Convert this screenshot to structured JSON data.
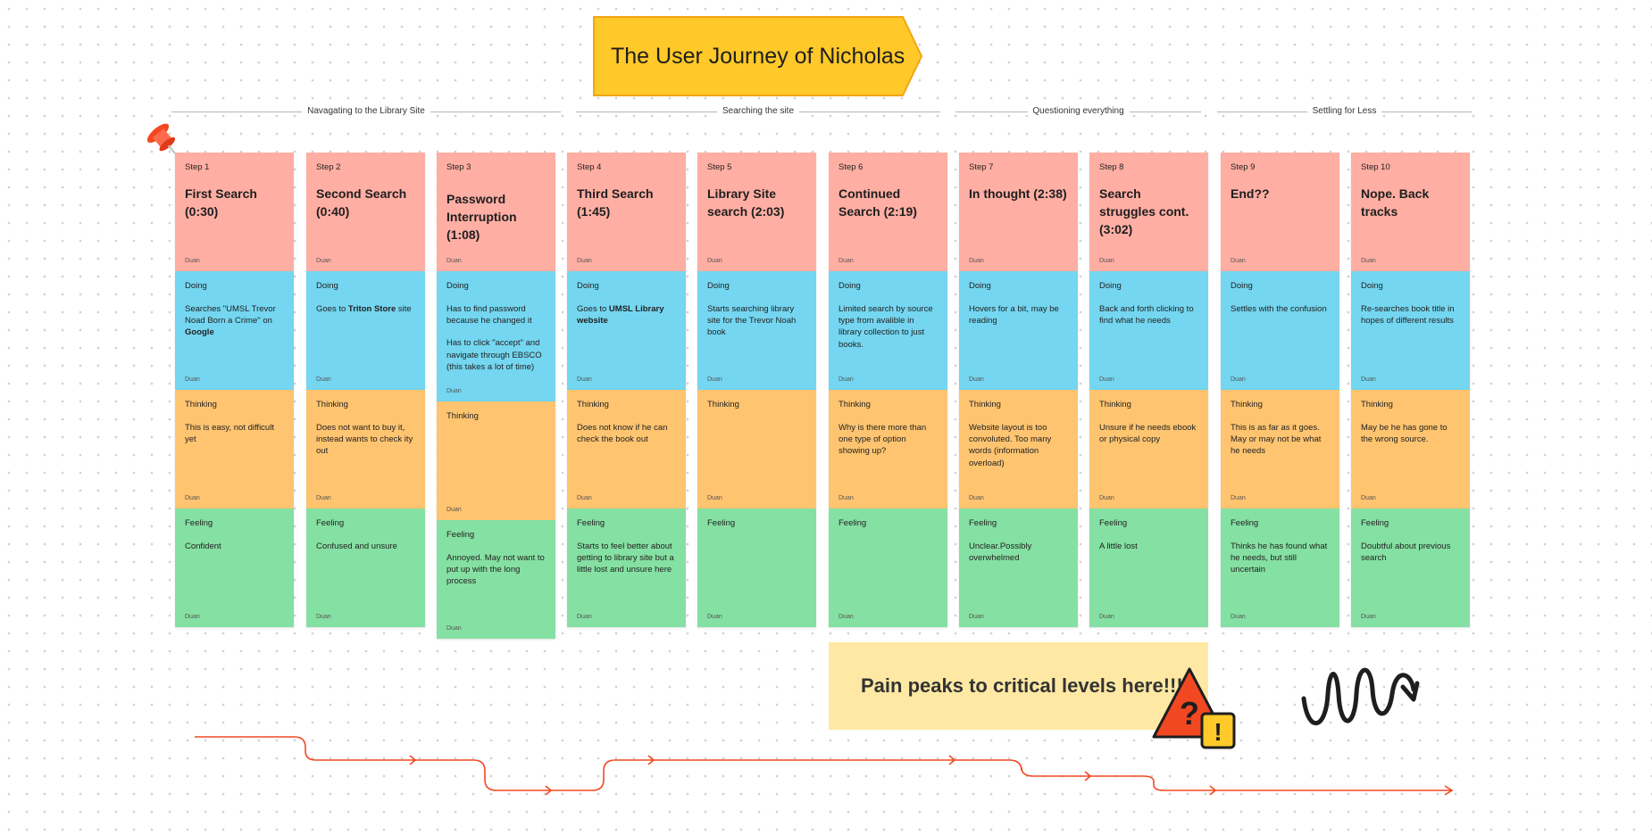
{
  "title": "The User Journey of Nicholas",
  "phases": [
    "Navagating to the Library Site",
    "Searching the site",
    "Questioning everything",
    "Settling for Less"
  ],
  "steps": [
    {
      "step": "Step 1",
      "title": "First Search (0:30)",
      "author": "Duan",
      "doing_label": "Doing",
      "doing": [
        "Searches \"UMSL Trevor Noad Born a Crime\" on ",
        "Google",
        ""
      ],
      "thinking_label": "Thinking",
      "thinking": "This is easy, not difficult yet",
      "feeling_label": "Feeling",
      "feeling": "Confident"
    },
    {
      "step": "Step 2",
      "title": "Second Search (0:40)",
      "author": "Duan",
      "doing_label": "Doing",
      "doing": [
        "Goes to ",
        "Triton Store",
        " site"
      ],
      "thinking_label": "Thinking",
      "thinking": "Does not want to buy it, instead wants to check ity out",
      "feeling_label": "Feeling",
      "feeling": "Confused and unsure"
    },
    {
      "step": "Step 3",
      "title": "Password Interruption (1:08)",
      "author": "Duan",
      "doing_label": "Doing",
      "doing_paragraphs": [
        "Has to find password because he changed it",
        "Has to click \"accept\" and navigate through EBSCO (this takes a lot of time)"
      ],
      "thinking_label": "Thinking",
      "thinking": "",
      "feeling_label": "Feeling",
      "feeling": "Annoyed. May not want to put up with the long process"
    },
    {
      "step": "Step 4",
      "title": "Third Search (1:45)",
      "author": "Duan",
      "doing_label": "Doing",
      "doing": [
        "Goes to ",
        "UMSL Library website",
        ""
      ],
      "thinking_label": "Thinking",
      "thinking": "Does not know if he can check the book out",
      "feeling_label": "Feeling",
      "feeling": "Starts to feel better about getting to library site but a little lost and unsure here"
    },
    {
      "step": "Step 5",
      "title": "Library Site search (2:03)",
      "author": "Duan",
      "doing_label": "Doing",
      "doing": [
        "Starts searching library site for the Trevor Noah book",
        "",
        ""
      ],
      "thinking_label": "Thinking",
      "thinking": "",
      "feeling_label": "Feeling",
      "feeling": ""
    },
    {
      "step": "Step 6",
      "title": "Continued Search (2:19)",
      "author": "Duan",
      "doing_label": "Doing",
      "doing": [
        "Limited search by source type from avalible in library collection to just books.",
        "",
        ""
      ],
      "thinking_label": "Thinking",
      "thinking": "Why is there more than one type of option showing up?",
      "feeling_label": "Feeling",
      "feeling": ""
    },
    {
      "step": "Step 7",
      "title": "In thought (2:38)",
      "author": "Duan",
      "doing_label": "Doing",
      "doing": [
        "Hovers for a bit, may be reading",
        "",
        ""
      ],
      "thinking_label": "Thinking",
      "thinking": "Website layout is too convoluted. Too many words (information overload)",
      "feeling_label": "Feeling",
      "feeling": "Unclear.Possibly overwhelmed"
    },
    {
      "step": "Step 8",
      "title": "Search struggles cont. (3:02)",
      "author": "Duan",
      "doing_label": "Doing",
      "doing": [
        "Back and forth clicking to find what he needs",
        "",
        ""
      ],
      "thinking_label": "Thinking",
      "thinking": "Unsure if he needs ebook or physical copy",
      "feeling_label": "Feeling",
      "feeling": "A little lost"
    },
    {
      "step": "Step 9",
      "title": "End??",
      "author": "Duan",
      "doing_label": "Doing",
      "doing": [
        "Settles with the confusion",
        "",
        ""
      ],
      "thinking_label": "Thinking",
      "thinking": "This is as far as it goes. May or may not be what he needs",
      "feeling_label": "Feeling",
      "feeling": "Thinks he has found what he needs, but still uncertain"
    },
    {
      "step": "Step 10",
      "title": "Nope. Back tracks",
      "author": "Duan",
      "doing_label": "Doing",
      "doing": [
        "Re-searches book title in hopes of different results",
        "",
        ""
      ],
      "thinking_label": "Thinking",
      "thinking": "May be he has gone to the wrong source.",
      "feeling_label": "Feeling",
      "feeling": "Doubtful about previous search"
    }
  ],
  "callout": "Pain peaks to critical levels here!!!",
  "warning_glyphs": {
    "question": "?",
    "exclaim": "!"
  },
  "colors": {
    "step": "#ffaea3",
    "doing": "#74d6f0",
    "thinking": "#ffc470",
    "feeling": "#85e0a3",
    "banner": "#ffc929",
    "callout": "#ffe8a3",
    "journey_line": "#f24822"
  },
  "icons": [
    "pushpin-icon",
    "warning-question-icon",
    "squiggle-doodle"
  ]
}
